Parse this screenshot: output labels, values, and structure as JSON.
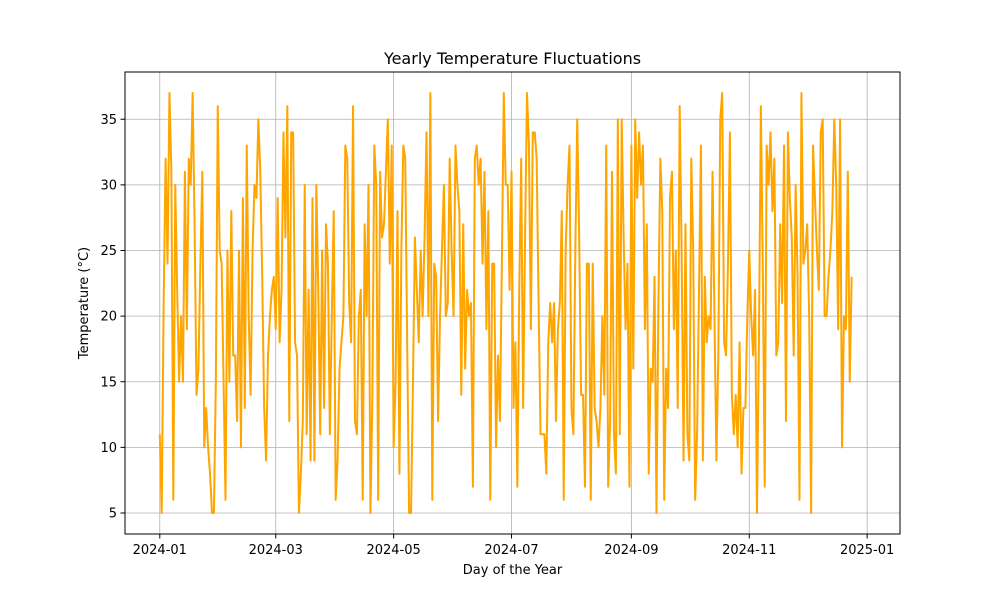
{
  "chart_data": {
    "type": "line",
    "title": "Yearly Temperature Fluctuations",
    "xlabel": "Day of the Year",
    "ylabel": "Temperature (°C)",
    "x_tick_labels": [
      "2024-01",
      "2024-03",
      "2024-05",
      "2024-07",
      "2024-09",
      "2024-11",
      "2025-01"
    ],
    "x_tick_dates": [
      "2024-01-01",
      "2024-03-01",
      "2024-05-01",
      "2024-07-01",
      "2024-09-01",
      "2024-11-01",
      "2025-01-01"
    ],
    "xlim": [
      "2023-12-14",
      "2025-01-18"
    ],
    "y_ticks": [
      5,
      10,
      15,
      20,
      25,
      30,
      35
    ],
    "y_tick_labels": [
      "5",
      "10",
      "15",
      "20",
      "25",
      "30",
      "35"
    ],
    "ylim": [
      3.4,
      38.6
    ],
    "grid": true,
    "line_color": "#ffa500",
    "series": [
      {
        "x_start": "2024-01-01",
        "x_step_days": 1,
        "values": [
          11,
          5,
          21,
          32,
          24,
          37,
          31,
          6,
          30,
          22,
          15,
          20,
          15,
          31,
          19,
          32,
          30,
          37,
          27,
          14,
          16,
          24,
          31,
          10,
          13,
          10,
          8,
          5,
          5,
          15,
          36,
          25,
          24,
          15,
          6,
          25,
          15,
          28,
          17,
          17,
          12,
          25,
          10,
          29,
          13,
          33,
          20,
          14,
          25,
          30,
          29,
          35,
          31,
          23,
          13,
          9,
          17,
          20,
          22,
          23,
          19,
          29,
          18,
          22,
          34,
          26,
          36,
          12,
          34,
          34,
          18,
          17,
          5,
          8,
          12,
          30,
          11,
          22,
          9,
          29,
          9,
          30,
          22,
          11,
          25,
          13,
          27,
          24,
          11,
          20,
          28,
          6,
          9,
          16,
          18,
          20,
          33,
          32,
          21,
          18,
          36,
          12,
          11,
          20,
          22,
          6,
          27,
          20,
          30,
          5,
          14,
          33,
          30,
          6,
          31,
          26,
          27,
          31,
          35,
          24,
          33,
          10,
          15,
          28,
          8,
          25,
          33,
          32,
          18,
          5,
          5,
          15,
          26,
          22,
          18,
          25,
          20,
          26,
          34,
          20,
          37,
          6,
          24,
          23,
          12,
          20,
          25,
          30,
          20,
          21,
          32,
          25,
          20,
          33,
          30,
          28,
          14,
          27,
          16,
          22,
          20,
          21,
          7,
          32,
          33,
          30,
          32,
          24,
          31,
          19,
          28,
          6,
          24,
          24,
          10,
          17,
          12,
          24,
          37,
          30,
          30,
          22,
          31,
          13,
          18,
          7,
          22,
          32,
          13,
          26,
          37,
          33,
          19,
          34,
          34,
          32,
          21,
          11,
          11,
          11,
          8,
          18,
          21,
          18,
          21,
          12,
          19,
          21,
          28,
          6,
          25,
          30,
          33,
          13,
          11,
          25,
          35,
          26,
          14,
          14,
          7,
          24,
          24,
          6,
          24,
          13,
          12,
          10,
          13,
          20,
          14,
          33,
          7,
          12,
          31,
          11,
          8,
          35,
          11,
          35,
          26,
          19,
          24,
          7,
          33,
          16,
          35,
          29,
          34,
          30,
          33,
          19,
          27,
          8,
          16,
          15,
          23,
          5,
          21,
          32,
          28,
          6,
          16,
          13,
          29,
          31,
          19,
          25,
          13,
          36,
          25,
          9,
          27,
          11,
          9,
          32,
          25,
          6,
          11,
          22,
          33,
          9,
          23,
          18,
          20,
          19,
          31,
          20,
          9,
          17,
          35,
          37,
          18,
          17,
          24,
          34,
          14,
          11,
          14,
          10,
          18,
          8,
          13,
          13,
          20,
          25,
          20,
          17,
          22,
          5,
          18,
          36,
          24,
          7,
          33,
          30,
          34,
          28,
          32,
          17,
          18,
          27,
          21,
          33,
          12,
          34,
          29,
          26,
          17,
          30,
          23,
          6,
          37,
          24,
          25,
          27,
          20,
          5,
          33,
          29,
          25,
          22,
          34,
          35,
          20,
          20,
          23,
          25,
          28,
          35,
          30,
          19,
          35,
          10,
          20,
          19,
          31,
          15,
          23
        ]
      }
    ]
  }
}
